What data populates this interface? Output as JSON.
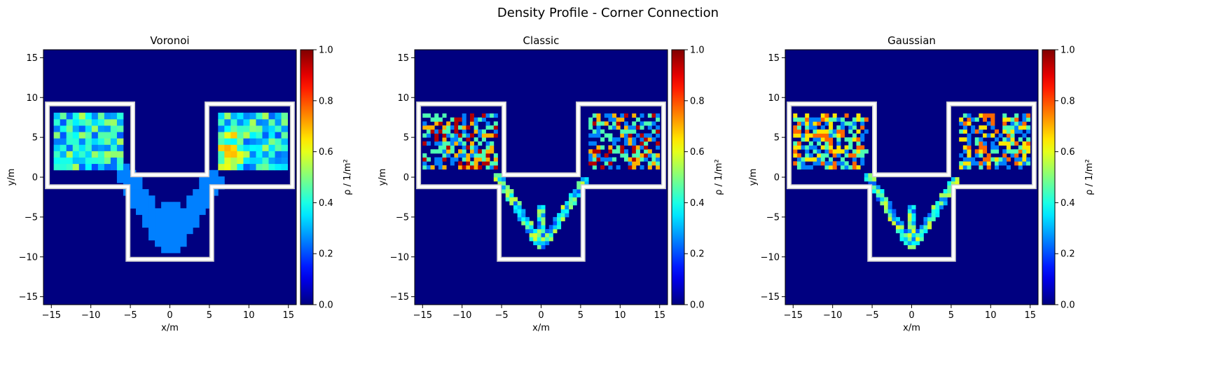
{
  "figure": {
    "suptitle": "Density Profile - Corner Connection"
  },
  "chart_data": [
    {
      "type": "heatmap",
      "title": "Voronoi",
      "method": "voronoi",
      "xlabel": "x/m",
      "ylabel": "y/m",
      "xlim": [
        -16,
        16
      ],
      "ylim": [
        -16,
        16
      ],
      "xticks": [
        -15,
        -10,
        -5,
        0,
        5,
        10,
        15
      ],
      "yticks": [
        -15,
        -10,
        -5,
        0,
        5,
        10,
        15
      ],
      "colorbar": {
        "label": "ρ / 1/m²",
        "ticks": [
          0.0,
          0.2,
          0.4,
          0.6,
          0.8,
          1.0
        ],
        "range": [
          0,
          1
        ],
        "colormap": "jet"
      },
      "geometry_outline_color": "#ffffff"
    },
    {
      "type": "heatmap",
      "title": "Classic",
      "method": "classic",
      "xlabel": "x/m",
      "ylabel": "y/m",
      "xlim": [
        -16,
        16
      ],
      "ylim": [
        -16,
        16
      ],
      "xticks": [
        -15,
        -10,
        -5,
        0,
        5,
        10,
        15
      ],
      "yticks": [
        -15,
        -10,
        -5,
        0,
        5,
        10,
        15
      ],
      "colorbar": {
        "label": "ρ / 1/m²",
        "ticks": [
          0.0,
          0.2,
          0.4,
          0.6,
          0.8,
          1.0
        ],
        "range": [
          0,
          1
        ],
        "colormap": "jet"
      },
      "geometry_outline_color": "#ffffff"
    },
    {
      "type": "heatmap",
      "title": "Gaussian",
      "method": "gaussian",
      "xlabel": "x/m",
      "ylabel": "y/m",
      "xlim": [
        -16,
        16
      ],
      "ylim": [
        -16,
        16
      ],
      "xticks": [
        -15,
        -10,
        -5,
        0,
        5,
        10,
        15
      ],
      "yticks": [
        -15,
        -10,
        -5,
        0,
        5,
        10,
        15
      ],
      "colorbar": {
        "label": "ρ / 1/m²",
        "ticks": [
          0.0,
          0.2,
          0.4,
          0.6,
          0.8,
          1.0
        ],
        "range": [
          0,
          1
        ],
        "colormap": "jet"
      },
      "geometry_outline_color": "#ffffff"
    }
  ],
  "geometry": {
    "outline": [
      [
        -15.5,
        9.2
      ],
      [
        -4.7,
        9.2
      ],
      [
        -4.7,
        0.3
      ],
      [
        4.7,
        0.3
      ],
      [
        4.7,
        9.2
      ],
      [
        15.5,
        9.2
      ],
      [
        15.5,
        -1.2
      ],
      [
        5.3,
        -1.2
      ],
      [
        5.3,
        -10.3
      ],
      [
        -5.3,
        -10.3
      ],
      [
        -5.3,
        -1.2
      ],
      [
        -15.5,
        -1.2
      ]
    ]
  }
}
